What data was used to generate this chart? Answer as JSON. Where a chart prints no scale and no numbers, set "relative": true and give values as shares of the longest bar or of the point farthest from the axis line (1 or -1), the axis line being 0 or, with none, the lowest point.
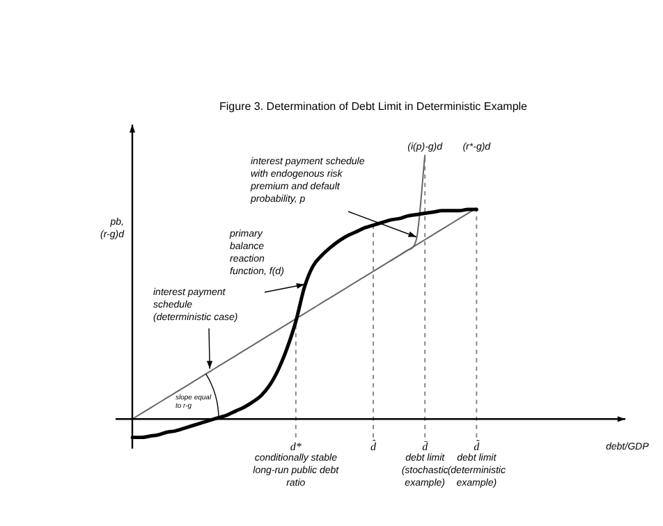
{
  "chart_data": {
    "type": "line",
    "relative": true,
    "title": "Figure 3. Determination of Debt Limit in Deterministic Example",
    "xlabel": "debt/GDP",
    "ylabel": "pb, (r-g)d",
    "categories": [
      null,
      null,
      null,
      null,
      null,
      null,
      null,
      null,
      null,
      null,
      null,
      null,
      null,
      null,
      null,
      null,
      null,
      null,
      null,
      "d*",
      null,
      null,
      null,
      null,
      null,
      null,
      null,
      null,
      "d̂",
      null,
      null,
      null,
      null,
      null,
      "d̄",
      null,
      null,
      null,
      null,
      null,
      "d̃",
      null,
      null,
      null,
      null,
      null,
      null,
      null,
      null,
      null,
      null,
      null,
      null,
      null,
      null,
      null,
      null
    ],
    "series": [
      {
        "color": "#000000",
        "values": [
          -0.07,
          -0.07,
          -0.065,
          -0.06,
          -0.05,
          -0.045,
          -0.035,
          -0.025,
          -0.015,
          -0.005,
          0.005,
          0.015,
          0.03,
          0.045,
          0.065,
          0.09,
          0.13,
          0.19,
          0.27,
          0.37,
          0.5,
          0.58,
          0.62,
          0.65,
          0.675,
          0.695,
          0.71,
          0.725,
          0.735,
          0.745,
          0.755,
          0.76,
          0.77,
          0.775,
          0.78,
          0.785,
          0.79,
          0.79,
          0.79,
          0.795,
          0.795,
          null,
          null,
          null,
          null,
          null,
          null,
          null,
          null,
          null,
          null,
          null,
          null,
          null,
          null,
          null,
          null
        ]
      },
      {
        "color": "#666666",
        "values": [
          0,
          0.02,
          0.04,
          0.06,
          0.08,
          0.1,
          0.12,
          0.14,
          0.16,
          0.18,
          0.2,
          0.22,
          0.24,
          0.26,
          0.28,
          0.3,
          0.32,
          0.34,
          0.36,
          0.38,
          0.4,
          0.42,
          0.44,
          0.46,
          0.48,
          0.5,
          0.52,
          0.54,
          0.56,
          0.58,
          0.6,
          0.62,
          0.64,
          0.66,
          0.68,
          0.7,
          0.72,
          0.74,
          0.76,
          0.78,
          0.8,
          null,
          null,
          null,
          null,
          null,
          null,
          null,
          null,
          null,
          null,
          null,
          null,
          null,
          null,
          null,
          null
        ]
      },
      {
        "color": "#666666",
        "values": [
          null,
          null,
          null,
          null,
          null,
          null,
          null,
          null,
          null,
          null,
          null,
          null,
          null,
          null,
          null,
          null,
          null,
          null,
          null,
          null,
          null,
          null,
          null,
          null,
          null,
          null,
          null,
          null,
          null,
          null,
          0.6,
          0.62,
          0.64,
          0.68,
          1.0,
          null,
          null,
          null,
          null,
          null,
          null,
          null,
          null,
          null,
          null,
          null,
          null,
          null,
          null,
          null,
          null,
          null,
          null,
          null,
          null,
          null,
          null
        ]
      }
    ],
    "ref_lines": [
      {
        "axis": "x",
        "value": "d*",
        "line_style": "dashed",
        "color": "#888888"
      },
      {
        "axis": "x",
        "value": "d̂",
        "line_style": "dashed",
        "color": "#888888"
      },
      {
        "axis": "x",
        "value": "d̄",
        "line_style": "dashed",
        "color": "#888888"
      },
      {
        "axis": "x",
        "value": "d̃",
        "line_style": "dashed",
        "color": "#888888"
      }
    ],
    "annotations": [
      "interest payment schedule with endogenous risk premium and default probability, p",
      "primary balance reaction function, f(d)",
      "interest payment schedule (deterministic case)",
      "slope equal to r-g",
      "conditionally stable long-run public debt ratio",
      "debt limit (stochastic example)",
      "debt limit (deterministic example)",
      "(i(p)-g)d",
      "(r*-g)d"
    ],
    "marker": "none",
    "line_style": "solid"
  }
}
